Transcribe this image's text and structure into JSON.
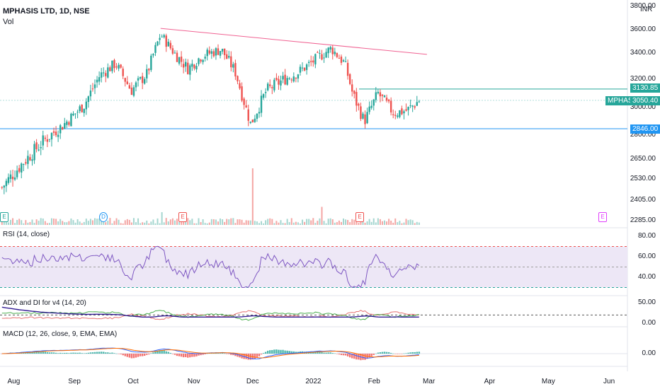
{
  "header": {
    "title": "MPHASIS LTD, 1D, NSE",
    "vol_label": "Vol",
    "currency": "INR"
  },
  "colors": {
    "up": "#26a69a",
    "down": "#ef5350",
    "resistance": "#26a69a",
    "support": "#2196f3",
    "trendline": "#f06292",
    "rsi": "#7e57c2",
    "rsi_band": "#ede7f6",
    "adx": "#311b92",
    "di_plus": "#4caf50",
    "di_minus": "#e57373",
    "macd": "#2962ff",
    "signal": "#ff6d00"
  },
  "price_axis": {
    "ticks": [
      "3600.00",
      "3400.00",
      "3200.00",
      "3000.00",
      "2800.00",
      "2650.00",
      "2530.00",
      "2405.00",
      "2285.00"
    ],
    "top_partial": "3800.00"
  },
  "tags": {
    "resistance": "3130.85",
    "support": "2846.00",
    "symbol": "MPHASIS",
    "last": "3050.40"
  },
  "months": [
    "Aug",
    "Sep",
    "Oct",
    "Nov",
    "Dec",
    "2022",
    "Feb",
    "Mar",
    "Apr",
    "May",
    "Jun"
  ],
  "panes": {
    "rsi": {
      "title": "RSI (14, close)",
      "ticks": [
        "80.00",
        "60.00",
        "40.00"
      ],
      "upper": 70,
      "lower": 30
    },
    "adx": {
      "title": "ADX and DI for v4 (14, 20)",
      "ticks": [
        "50.00",
        "0.00"
      ],
      "threshold": 20
    },
    "macd": {
      "title": "MACD (12, 26, close, 9, EMA, EMA)",
      "ticks": [
        "0.00"
      ]
    }
  },
  "events": [
    {
      "letter": "E",
      "type": "earnings-green"
    },
    {
      "letter": "D",
      "type": "dividend"
    },
    {
      "letter": "E",
      "type": "earnings-red"
    },
    {
      "letter": "E",
      "type": "earnings-red"
    },
    {
      "letter": "E",
      "type": "earnings-future"
    }
  ],
  "chart_data": {
    "type": "candlestick",
    "title": "MPHASIS LTD, 1D, NSE",
    "y_range": [
      2230,
      3800
    ],
    "resistance_level": 3130.85,
    "support_level": 2846.0,
    "last_price": 3050.4,
    "trendline": {
      "from": [
        "2021-10-15",
        3610
      ],
      "to": [
        "2022-02-28",
        3390
      ]
    },
    "close_anchors": [
      [
        "2021-07-26",
        2480
      ],
      [
        "2021-08-05",
        2620
      ],
      [
        "2021-08-16",
        2760
      ],
      [
        "2021-08-26",
        2870
      ],
      [
        "2021-09-06",
        3020
      ],
      [
        "2021-09-14",
        3230
      ],
      [
        "2021-09-22",
        3320
      ],
      [
        "2021-09-30",
        3120
      ],
      [
        "2021-10-08",
        3240
      ],
      [
        "2021-10-15",
        3560
      ],
      [
        "2021-10-22",
        3400
      ],
      [
        "2021-10-29",
        3280
      ],
      [
        "2021-11-05",
        3380
      ],
      [
        "2021-11-15",
        3430
      ],
      [
        "2021-11-22",
        3260
      ],
      [
        "2021-11-30",
        2880
      ],
      [
        "2021-12-08",
        3120
      ],
      [
        "2021-12-17",
        3200
      ],
      [
        "2021-12-24",
        3250
      ],
      [
        "2022-01-03",
        3360
      ],
      [
        "2022-01-10",
        3440
      ],
      [
        "2022-01-17",
        3320
      ],
      [
        "2022-01-21",
        3100
      ],
      [
        "2022-01-27",
        2900
      ],
      [
        "2022-02-03",
        3100
      ],
      [
        "2022-02-11",
        2960
      ],
      [
        "2022-02-18",
        2980
      ],
      [
        "2022-02-24",
        3050
      ]
    ]
  }
}
